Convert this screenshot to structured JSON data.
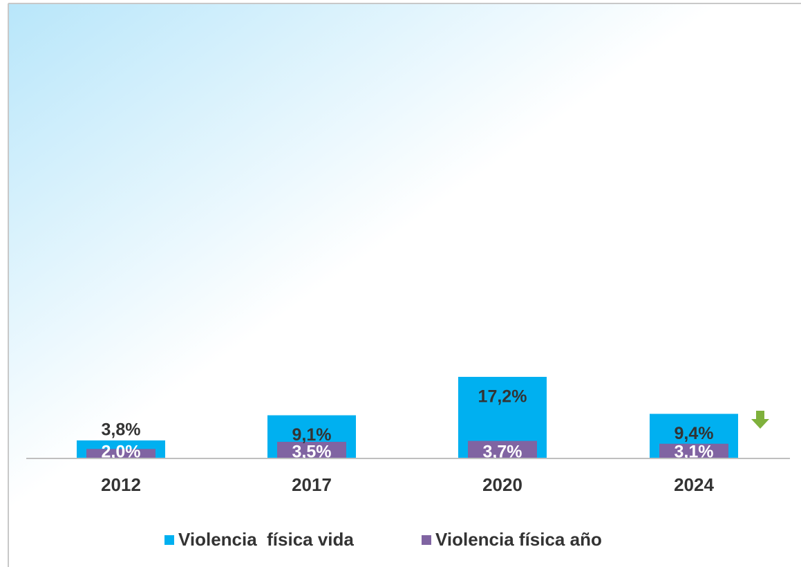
{
  "chart_data": {
    "type": "bar",
    "categories": [
      "2012",
      "2017",
      "2020",
      "2024"
    ],
    "series": [
      {
        "name": "Violencia  física vida",
        "color": "#00b0f0",
        "values": [
          3.8,
          9.1,
          17.2,
          9.4
        ],
        "value_labels": [
          "3,8%",
          "9,1%",
          "17,2%",
          "9,4%"
        ]
      },
      {
        "name": "Violencia física año",
        "color": "#8064a2",
        "values": [
          2.0,
          3.5,
          3.7,
          3.1
        ],
        "value_labels": [
          "2,0%",
          "3,5%",
          "3,7%",
          "3,1%"
        ]
      }
    ]
  }
}
